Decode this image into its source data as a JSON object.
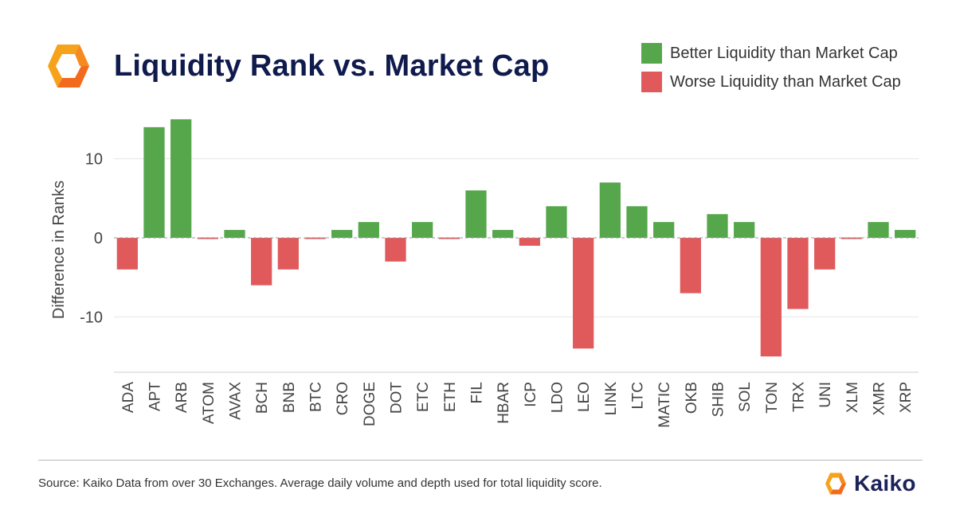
{
  "title": "Liquidity Rank vs. Market Cap",
  "legend": [
    {
      "label": "Better Liquidity than Market Cap",
      "color": "#56a74c"
    },
    {
      "label": "Worse Liquidity than Market Cap",
      "color": "#e05a5c"
    }
  ],
  "source": "Source: Kaiko Data from over 30 Exchanges. Average daily volume and depth used for total liquidity score.",
  "brand": {
    "name": "Kaiko",
    "logo_icon": "kaiko-logo-icon",
    "logo_colors": [
      "#f7a21b",
      "#f26b1d"
    ]
  },
  "chart_data": {
    "type": "bar",
    "title": "Liquidity Rank vs. Market Cap",
    "xlabel": "",
    "ylabel": "Difference in Ranks",
    "ylim": [
      -17,
      16
    ],
    "yticks": [
      -10,
      0,
      10
    ],
    "grid": true,
    "legend_position": "top-right",
    "categories": [
      "ADA",
      "APT",
      "ARB",
      "ATOM",
      "AVAX",
      "BCH",
      "BNB",
      "BTC",
      "CRO",
      "DOGE",
      "DOT",
      "ETC",
      "ETH",
      "FIL",
      "HBAR",
      "ICP",
      "LDO",
      "LEO",
      "LINK",
      "LTC",
      "MATIC",
      "OKB",
      "SHIB",
      "SOL",
      "TON",
      "TRX",
      "UNI",
      "XLM",
      "XMR",
      "XRP"
    ],
    "values": [
      -4,
      14,
      15,
      0,
      1,
      -6,
      -4,
      0,
      1,
      2,
      -3,
      2,
      0,
      6,
      1,
      -1,
      4,
      -14,
      7,
      4,
      2,
      -7,
      3,
      2,
      -15,
      -9,
      -4,
      0,
      2,
      1
    ],
    "colors": {
      "positive": "#56a74c",
      "negative": "#e05a5c"
    }
  }
}
